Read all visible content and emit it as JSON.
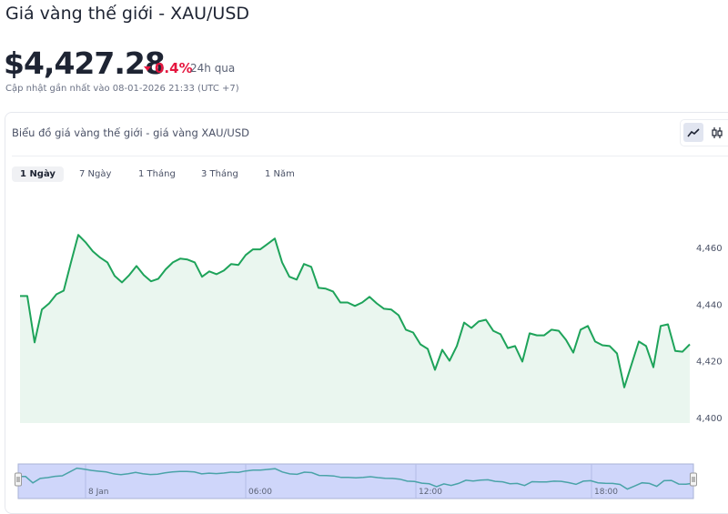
{
  "header": {
    "title": "Giá vàng thế giới - XAU/USD",
    "price": "$4,427.28",
    "change": "0.4%",
    "change_direction": "down",
    "change_color": "#e5173f",
    "period": "24h qua",
    "updated": "Cập nhật gần nhất vào 08-01-2026 21:33 (UTC +7)"
  },
  "card": {
    "title": "Biểu đồ giá vàng thế giới - giá vàng XAU/USD",
    "chart_types": [
      {
        "icon": "line-chart-icon",
        "active": true
      },
      {
        "icon": "candlestick-icon",
        "active": false
      }
    ],
    "tabs": [
      {
        "label": "1 Ngày",
        "active": true
      },
      {
        "label": "7 Ngày",
        "active": false
      },
      {
        "label": "1 Tháng",
        "active": false
      },
      {
        "label": "3 Tháng",
        "active": false
      },
      {
        "label": "1 Năm",
        "active": false
      }
    ]
  },
  "chart_data": {
    "type": "area",
    "title": "",
    "xlabel": "",
    "ylabel": "",
    "ylim": [
      4398,
      4480
    ],
    "yticks": [
      4400,
      4420,
      4440,
      4460
    ],
    "ytick_labels": [
      "4,400",
      "4,420",
      "4,440",
      "4,460"
    ],
    "grid": false,
    "line_color": "#1ea35a",
    "fill_color": "#eaf6ef",
    "navigator": {
      "labels": [
        "8 Jan",
        "06:00",
        "12:00",
        "18:00"
      ],
      "fill_color": "#cfd6fa",
      "line_color": "#4aa3a8"
    },
    "series": [
      {
        "values": [
          4442.9,
          4442.9,
          4426.5,
          4438.1,
          4440.3,
          4443.5,
          4444.8,
          4454.8,
          4464.5,
          4461.9,
          4458.7,
          4456.5,
          4454.8,
          4450.0,
          4447.7,
          4450.3,
          4453.5,
          4450.3,
          4448.1,
          4449.0,
          4452.3,
          4454.8,
          4456.1,
          4455.8,
          4454.8,
          4449.7,
          4451.6,
          4450.6,
          4451.9,
          4454.2,
          4453.9,
          4457.4,
          4459.4,
          4459.4,
          4461.3,
          4463.2,
          4454.8,
          4449.7,
          4448.7,
          4454.2,
          4453.2,
          4445.8,
          4445.5,
          4444.5,
          4440.6,
          4440.6,
          4439.4,
          4440.6,
          4442.6,
          4440.3,
          4438.4,
          4438.1,
          4436.1,
          4431.0,
          4430.0,
          4425.8,
          4424.2,
          4416.8,
          4423.9,
          4420.0,
          4425.2,
          4433.5,
          4431.6,
          4433.9,
          4434.5,
          4430.6,
          4429.4,
          4424.5,
          4425.2,
          4419.7,
          4429.7,
          4429.0,
          4429.0,
          4431.0,
          4430.6,
          4427.4,
          4422.9,
          4431.0,
          4432.3,
          4426.8,
          4425.5,
          4425.2,
          4422.6,
          4410.6,
          4418.7,
          4426.8,
          4425.2,
          4417.7,
          4432.3,
          4432.9,
          4423.5,
          4423.2,
          4425.8
        ]
      }
    ]
  }
}
